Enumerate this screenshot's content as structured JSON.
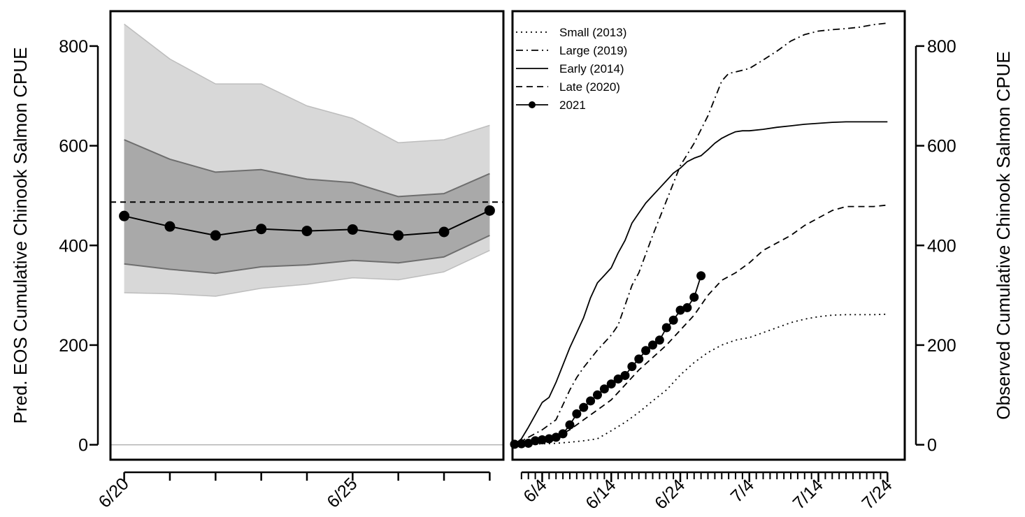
{
  "chart_data": [
    {
      "type": "line",
      "ylabel": "Pred. EOS Cumulative Chinook Salmon CPUE",
      "x_ticks": [
        {
          "day": 20,
          "label": "6/20"
        },
        {
          "day": 21,
          "label": ""
        },
        {
          "day": 22,
          "label": ""
        },
        {
          "day": 23,
          "label": ""
        },
        {
          "day": 24,
          "label": ""
        },
        {
          "day": 25,
          "label": "6/25"
        },
        {
          "day": 26,
          "label": ""
        },
        {
          "day": 27,
          "label": ""
        },
        {
          "day": 28,
          "label": ""
        }
      ],
      "xlim": [
        19.7,
        28.3
      ],
      "ylim": [
        -30,
        870
      ],
      "y_ticks": [
        0,
        200,
        400,
        600,
        800
      ],
      "reference_line": 487,
      "zero_line": 0,
      "days": [
        20,
        21,
        22,
        23,
        24,
        25,
        26,
        27,
        28
      ],
      "prediction": [
        459,
        438,
        420,
        433,
        429,
        432,
        420,
        427,
        470
      ],
      "band_outer_lower": [
        305,
        303,
        298,
        314,
        322,
        335,
        331,
        347,
        390
      ],
      "band_outer_upper": [
        844,
        774,
        724,
        724,
        680,
        655,
        606,
        612,
        641
      ],
      "band_inner_lower": [
        363,
        352,
        344,
        357,
        361,
        370,
        365,
        377,
        420
      ],
      "band_inner_upper": [
        612,
        573,
        547,
        552,
        533,
        526,
        498,
        504,
        544
      ],
      "colors": {
        "outer_band": "#d8d8d8",
        "inner_band": "#a9a9a9",
        "band_edge": "#6e6e6e",
        "zero_line": "#b3b3b3"
      }
    },
    {
      "type": "line",
      "ylabel": "Observed Cumulative Chinook Salmon CPUE",
      "x_ticks": [
        {
          "day": 4,
          "label": "6/4"
        },
        {
          "day": 14,
          "label": "6/14"
        },
        {
          "day": 24,
          "label": "6/24"
        },
        {
          "day": 34,
          "label": "7/4"
        },
        {
          "day": 44,
          "label": "7/14"
        },
        {
          "day": 54,
          "label": "7/24"
        }
      ],
      "minor_tick_range": [
        1,
        54
      ],
      "xlim": [
        -0.3,
        56.5
      ],
      "ylim": [
        -30,
        870
      ],
      "y_ticks": [
        0,
        200,
        400,
        600,
        800
      ],
      "series": [
        {
          "name": "Small (2013)",
          "style": "dotted",
          "x": [
            0,
            2,
            4,
            6,
            8,
            10,
            12,
            14,
            16,
            18,
            20,
            22,
            24,
            26,
            28,
            30,
            32,
            34,
            36,
            38,
            40,
            42,
            44,
            46,
            48,
            50,
            52,
            54
          ],
          "y": [
            0,
            1,
            2,
            3,
            5,
            8,
            12,
            28,
            45,
            65,
            88,
            110,
            140,
            165,
            185,
            200,
            210,
            215,
            225,
            235,
            245,
            252,
            257,
            260,
            261,
            261,
            261,
            262
          ]
        },
        {
          "name": "Large (2019)",
          "style": "dotdash",
          "x": [
            0,
            2,
            4,
            6,
            7,
            8,
            9,
            10,
            12,
            14,
            15,
            16,
            17,
            18,
            20,
            22,
            24,
            26,
            28,
            29,
            30,
            31,
            32,
            34,
            36,
            38,
            40,
            42,
            44,
            46,
            48,
            50,
            52,
            54
          ],
          "y": [
            0,
            15,
            30,
            50,
            80,
            110,
            135,
            155,
            190,
            220,
            240,
            280,
            320,
            345,
            420,
            490,
            560,
            605,
            660,
            695,
            730,
            745,
            748,
            755,
            772,
            790,
            810,
            823,
            830,
            833,
            835,
            838,
            843,
            846
          ]
        },
        {
          "name": "Early (2014)",
          "style": "solid",
          "x": [
            0,
            1,
            2,
            3,
            4,
            5,
            6,
            7,
            8,
            9,
            10,
            11,
            12,
            13,
            14,
            15,
            16,
            17,
            18,
            19,
            20,
            21,
            22,
            23,
            24,
            25,
            26,
            27,
            28,
            29,
            30,
            31,
            32,
            33,
            34,
            36,
            38,
            40,
            42,
            44,
            46,
            48,
            50,
            52,
            54
          ],
          "y": [
            0,
            12,
            35,
            60,
            85,
            95,
            125,
            160,
            195,
            225,
            255,
            295,
            325,
            340,
            355,
            385,
            410,
            445,
            465,
            485,
            500,
            515,
            530,
            545,
            555,
            568,
            575,
            580,
            592,
            605,
            615,
            622,
            628,
            630,
            630,
            633,
            637,
            640,
            643,
            645,
            647,
            648,
            648,
            648,
            648
          ]
        },
        {
          "name": "Late (2020)",
          "style": "dashed",
          "x": [
            0,
            2,
            4,
            6,
            8,
            10,
            12,
            14,
            16,
            18,
            20,
            22,
            24,
            26,
            28,
            30,
            32,
            34,
            36,
            38,
            40,
            42,
            44,
            46,
            48,
            50,
            52,
            54
          ],
          "y": [
            0,
            2,
            8,
            16,
            30,
            50,
            70,
            90,
            120,
            150,
            175,
            200,
            230,
            260,
            300,
            330,
            345,
            365,
            390,
            405,
            420,
            440,
            455,
            470,
            478,
            478,
            478,
            481
          ]
        },
        {
          "name": "2021",
          "style": "points",
          "x": [
            0,
            1,
            2,
            3,
            4,
            5,
            6,
            7,
            8,
            9,
            10,
            11,
            12,
            13,
            14,
            15,
            16,
            17,
            18,
            19,
            20,
            21,
            22,
            23,
            24,
            25,
            26,
            27
          ],
          "y": [
            1,
            2,
            3,
            8,
            10,
            12,
            15,
            22,
            40,
            62,
            75,
            88,
            100,
            112,
            122,
            132,
            139,
            157,
            172,
            189,
            200,
            210,
            235,
            250,
            270,
            275,
            296,
            339
          ]
        }
      ],
      "legend": {
        "position": "top-left"
      }
    }
  ]
}
